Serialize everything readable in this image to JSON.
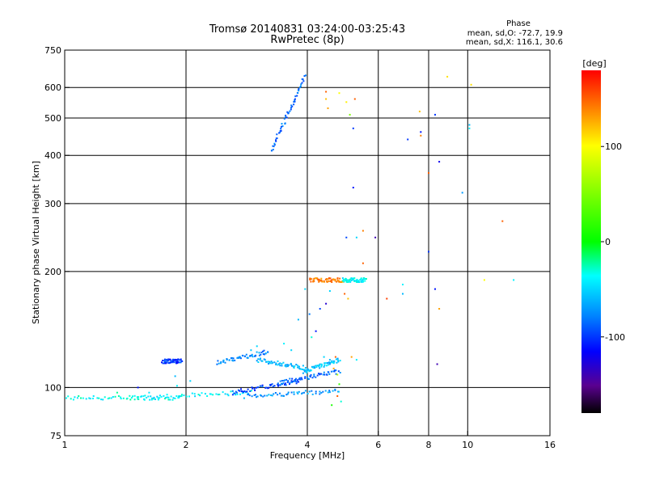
{
  "chart_data": {
    "type": "scatter",
    "title": "Tromsø 20140831 03:24:00-03:25:43",
    "subtitle": "RwPretec (8p)",
    "xlabel": "Frequency [MHz]",
    "ylabel": "Stationary phase Virtual Height [km]",
    "x_scale": "log2",
    "y_scale": "log",
    "xlim": [
      1,
      16
    ],
    "ylim": [
      75,
      750
    ],
    "x_ticks": [
      1,
      2,
      4,
      6,
      8,
      10,
      16
    ],
    "x_tick_labels": [
      "1",
      "2",
      "4",
      "6",
      "8",
      "10",
      "16"
    ],
    "y_ticks": [
      75,
      100,
      200,
      300,
      400,
      500,
      600,
      750
    ],
    "y_tick_labels": [
      "75",
      "100",
      "200",
      "300",
      "400",
      "500",
      "600",
      "750"
    ],
    "grid": true,
    "stats": {
      "header": "Phase",
      "lines": [
        "mean, sd,O: -72.7, 19.9",
        "mean, sd,X: 116.1, 30.6"
      ]
    },
    "colorbar": {
      "label": "[deg]",
      "range": [
        -180,
        180
      ],
      "ticks": [
        100,
        0,
        -100
      ],
      "tick_labels": [
        "100",
        "0",
        "-100"
      ]
    },
    "traces": [
      {
        "f0": 1.0,
        "f1": 1.95,
        "h0": 94,
        "h1": 94,
        "phase": -35
      },
      {
        "f0": 1.45,
        "f1": 2.9,
        "h0": 94,
        "h1": 97,
        "phase": -40
      },
      {
        "f0": 2.8,
        "f1": 4.8,
        "h0": 95,
        "h1": 98,
        "phase": -70
      },
      {
        "f0": 2.6,
        "f1": 3.8,
        "h0": 97,
        "h1": 104,
        "phase": -95
      },
      {
        "f0": 3.4,
        "f1": 4.8,
        "h0": 103,
        "h1": 110,
        "phase": -85
      },
      {
        "f0": 1.75,
        "f1": 1.95,
        "h0": 117,
        "h1": 117,
        "phase": -100
      },
      {
        "f0": 2.4,
        "f1": 3.2,
        "h0": 116,
        "h1": 124,
        "phase": -75
      },
      {
        "f0": 3.0,
        "f1": 4.0,
        "h0": 118,
        "h1": 112,
        "phase": -60
      },
      {
        "f0": 3.9,
        "f1": 4.8,
        "h0": 110,
        "h1": 118,
        "phase": -55
      },
      {
        "f0": 4.05,
        "f1": 4.9,
        "h0": 190,
        "h1": 190,
        "phase": 140
      },
      {
        "f0": 4.9,
        "f1": 5.6,
        "h0": 190,
        "h1": 190,
        "phase": -40
      },
      {
        "f0": 3.25,
        "f1": 3.95,
        "h0": 410,
        "h1": 640,
        "phase": -85
      }
    ],
    "points": [
      {
        "f": 1.35,
        "h": 97,
        "phase": -20
      },
      {
        "f": 1.62,
        "h": 97,
        "phase": -45
      },
      {
        "f": 1.52,
        "h": 100,
        "phase": -110
      },
      {
        "f": 1.88,
        "h": 107,
        "phase": -60
      },
      {
        "f": 1.9,
        "h": 101,
        "phase": -40
      },
      {
        "f": 2.05,
        "h": 104,
        "phase": -50
      },
      {
        "f": 2.9,
        "h": 125,
        "phase": -55
      },
      {
        "f": 3.0,
        "h": 128,
        "phase": -50
      },
      {
        "f": 3.5,
        "h": 130,
        "phase": -40
      },
      {
        "f": 3.65,
        "h": 125,
        "phase": -50
      },
      {
        "f": 3.8,
        "h": 150,
        "phase": -60
      },
      {
        "f": 3.95,
        "h": 180,
        "phase": -50
      },
      {
        "f": 4.05,
        "h": 155,
        "phase": -80
      },
      {
        "f": 4.3,
        "h": 160,
        "phase": -95
      },
      {
        "f": 4.45,
        "h": 165,
        "phase": -130
      },
      {
        "f": 4.1,
        "h": 135,
        "phase": -30
      },
      {
        "f": 4.2,
        "h": 140,
        "phase": -110
      },
      {
        "f": 4.4,
        "h": 120,
        "phase": -50
      },
      {
        "f": 4.55,
        "h": 118,
        "phase": -60
      },
      {
        "f": 4.7,
        "h": 120,
        "phase": 150
      },
      {
        "f": 4.65,
        "h": 112,
        "phase": 130
      },
      {
        "f": 4.75,
        "h": 108,
        "phase": 70
      },
      {
        "f": 4.8,
        "h": 102,
        "phase": 20
      },
      {
        "f": 4.75,
        "h": 95,
        "phase": 150
      },
      {
        "f": 4.85,
        "h": 92,
        "phase": -30
      },
      {
        "f": 4.6,
        "h": 90,
        "phase": 10
      },
      {
        "f": 5.15,
        "h": 120,
        "phase": 130
      },
      {
        "f": 5.3,
        "h": 118,
        "phase": -40
      },
      {
        "f": 4.95,
        "h": 175,
        "phase": 150
      },
      {
        "f": 5.05,
        "h": 170,
        "phase": 120
      },
      {
        "f": 4.6,
        "h": 190,
        "phase": 160
      },
      {
        "f": 4.55,
        "h": 178,
        "phase": -50
      },
      {
        "f": 4.45,
        "h": 585,
        "phase": 150
      },
      {
        "f": 4.45,
        "h": 560,
        "phase": 120
      },
      {
        "f": 4.5,
        "h": 530,
        "phase": 130
      },
      {
        "f": 4.8,
        "h": 580,
        "phase": 100
      },
      {
        "f": 5.0,
        "h": 550,
        "phase": 105
      },
      {
        "f": 5.1,
        "h": 510,
        "phase": 50
      },
      {
        "f": 5.25,
        "h": 560,
        "phase": 150
      },
      {
        "f": 5.2,
        "h": 470,
        "phase": -100
      },
      {
        "f": 5.2,
        "h": 330,
        "phase": -110
      },
      {
        "f": 5.0,
        "h": 245,
        "phase": -95
      },
      {
        "f": 5.3,
        "h": 245,
        "phase": -50
      },
      {
        "f": 5.5,
        "h": 255,
        "phase": 140
      },
      {
        "f": 5.5,
        "h": 210,
        "phase": 150
      },
      {
        "f": 5.9,
        "h": 245,
        "phase": -140
      },
      {
        "f": 6.3,
        "h": 170,
        "phase": 160
      },
      {
        "f": 6.9,
        "h": 185,
        "phase": -40
      },
      {
        "f": 6.9,
        "h": 175,
        "phase": -60
      },
      {
        "f": 7.1,
        "h": 440,
        "phase": -100
      },
      {
        "f": 7.6,
        "h": 520,
        "phase": 120
      },
      {
        "f": 7.65,
        "h": 460,
        "phase": -110
      },
      {
        "f": 7.65,
        "h": 450,
        "phase": 140
      },
      {
        "f": 8.0,
        "h": 360,
        "phase": 150
      },
      {
        "f": 8.0,
        "h": 225,
        "phase": -100
      },
      {
        "f": 8.3,
        "h": 510,
        "phase": -100
      },
      {
        "f": 8.3,
        "h": 180,
        "phase": -110
      },
      {
        "f": 8.5,
        "h": 385,
        "phase": -120
      },
      {
        "f": 8.5,
        "h": 160,
        "phase": 130
      },
      {
        "f": 8.4,
        "h": 115,
        "phase": -140
      },
      {
        "f": 8.9,
        "h": 640,
        "phase": 110
      },
      {
        "f": 9.7,
        "h": 320,
        "phase": -70
      },
      {
        "f": 10.1,
        "h": 470,
        "phase": -40
      },
      {
        "f": 10.1,
        "h": 480,
        "phase": -60
      },
      {
        "f": 10.2,
        "h": 610,
        "phase": 110
      },
      {
        "f": 11.0,
        "h": 190,
        "phase": 100
      },
      {
        "f": 12.2,
        "h": 270,
        "phase": 150
      },
      {
        "f": 13.0,
        "h": 190,
        "phase": -40
      }
    ]
  }
}
